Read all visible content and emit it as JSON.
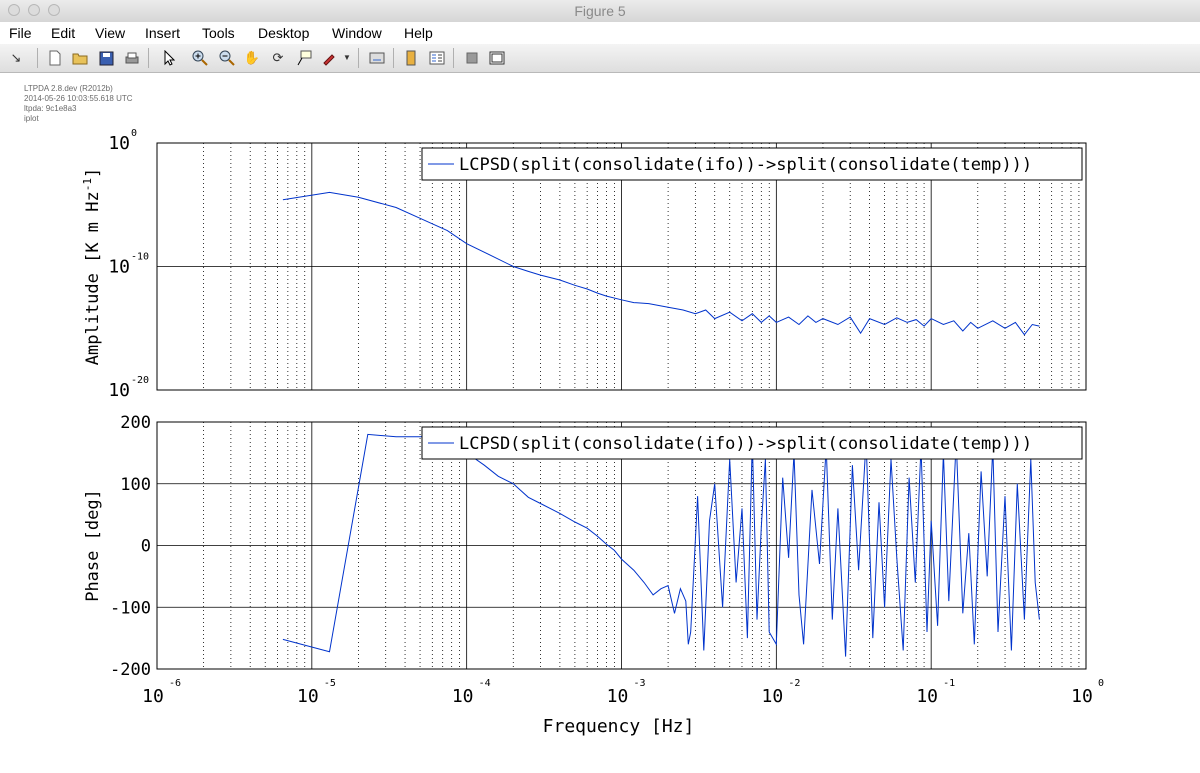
{
  "window": {
    "title": "Figure 5"
  },
  "menu": [
    "File",
    "Edit",
    "View",
    "Insert",
    "Tools",
    "Desktop",
    "Window",
    "Help"
  ],
  "toolbar": {
    "icons": [
      "dock-arrow-icon",
      "new-figure-icon",
      "open-file-icon",
      "save-icon",
      "print-icon",
      "select-arrow-icon",
      "zoom-in-icon",
      "zoom-out-icon",
      "pan-hand-icon",
      "rotate-3d-icon",
      "data-cursor-icon",
      "brush-icon",
      "brush-dropdown-icon",
      "link-plot-icon",
      "colorbar-icon",
      "legend-icon",
      "hide-plot-tools-icon",
      "show-plot-tools-icon"
    ]
  },
  "meta": {
    "line1": "LTPDA 2.8.dev (R2012b)",
    "line2": "2014-05-26 10:03:55.618 UTC",
    "line3": "ltpda: 9c1e8a3",
    "line4": "iplot"
  },
  "colors": {
    "series": "#0033cc"
  },
  "chart_data": [
    {
      "type": "line",
      "xscale": "log",
      "yscale": "log",
      "xlim": [
        1e-06,
        1
      ],
      "ylim": [
        1e-20,
        1
      ],
      "ylabel_main": "Amplitude   [K m Hz",
      "ylabel_sup": "-1",
      "ylabel_end": "]",
      "yticks": [
        {
          "base": "10",
          "exp": "-20"
        },
        {
          "base": "10",
          "exp": "-10"
        },
        {
          "base": "10",
          "exp": "0"
        }
      ],
      "grid": true,
      "legend_position": "top-right",
      "series": [
        {
          "name": "LCPSD(split(consolidate(ifo))->split(consolidate(temp)))",
          "x": [
            6.5e-06,
            1.3e-05,
            2e-05,
            3.5e-05,
            5e-05,
            7.5e-05,
            0.0001,
            0.00015,
            0.0002,
            0.00025,
            0.0003,
            0.0004,
            0.0005,
            0.0006,
            0.0007,
            0.0008,
            0.001,
            0.0012,
            0.0015,
            0.002,
            0.0025,
            0.003,
            0.0035,
            0.004,
            0.005,
            0.006,
            0.007,
            0.008,
            0.009,
            0.01,
            0.012,
            0.014,
            0.016,
            0.018,
            0.02,
            0.025,
            0.03,
            0.035,
            0.04,
            0.05,
            0.06,
            0.07,
            0.08,
            0.09,
            0.1,
            0.12,
            0.14,
            0.16,
            0.18,
            0.2,
            0.25,
            0.3,
            0.35,
            0.4,
            0.45,
            0.5
          ],
          "y": [
            2.5e-05,
            0.0001,
            4e-05,
            6e-06,
            8e-07,
            8e-08,
            7e-09,
            6e-10,
            1e-10,
            4e-11,
            2e-11,
            8e-12,
            3e-12,
            1.5e-12,
            7e-13,
            4e-13,
            2e-13,
            1.2e-13,
            1e-13,
            5e-14,
            3e-14,
            1.5e-14,
            3e-14,
            6e-15,
            2e-14,
            4e-15,
            1.5e-14,
            3e-15,
            1e-14,
            3e-15,
            8e-15,
            2e-15,
            1e-14,
            3e-15,
            6e-15,
            2e-15,
            8e-15,
            4e-16,
            6e-15,
            2e-15,
            7e-15,
            3e-15,
            5e-15,
            1.5e-15,
            6e-15,
            2e-15,
            4e-15,
            6e-16,
            3e-15,
            1e-15,
            4e-15,
            1e-15,
            3e-15,
            3e-16,
            2e-15,
            1.5e-15
          ]
        }
      ]
    },
    {
      "type": "line",
      "xscale": "log",
      "xlim": [
        1e-06,
        1
      ],
      "ylim": [
        -200,
        200
      ],
      "ylabel": "Phase   [deg]",
      "xlabel": "Frequency   [Hz]",
      "xticks": [
        {
          "base": "10",
          "exp": "-6"
        },
        {
          "base": "10",
          "exp": "-5"
        },
        {
          "base": "10",
          "exp": "-4"
        },
        {
          "base": "10",
          "exp": "-3"
        },
        {
          "base": "10",
          "exp": "-2"
        },
        {
          "base": "10",
          "exp": "-1"
        },
        {
          "base": "10",
          "exp": "0"
        }
      ],
      "yticks": [
        "-200",
        "-100",
        "0",
        "100",
        "200"
      ],
      "grid": true,
      "legend_position": "top-right",
      "series": [
        {
          "name": "LCPSD(split(consolidate(ifo))->split(consolidate(temp)))",
          "x": [
            6.5e-06,
            1.3e-05,
            2.3e-05,
            3.5e-05,
            5e-05,
            7e-05,
            0.0001,
            0.00013,
            0.00016,
            0.0002,
            0.00025,
            0.0003,
            0.0004,
            0.0005,
            0.0006,
            0.0007,
            0.0008,
            0.0009,
            0.001,
            0.0012,
            0.0014,
            0.0016,
            0.0018,
            0.002,
            0.0022,
            0.0024,
            0.0026,
            0.0027,
            0.0028,
            0.0031,
            0.0034,
            0.0037,
            0.004,
            0.0045,
            0.005,
            0.0055,
            0.006,
            0.0065,
            0.007,
            0.0075,
            0.008,
            0.0085,
            0.009,
            0.01,
            0.011,
            0.012,
            0.013,
            0.014,
            0.015,
            0.017,
            0.019,
            0.021,
            0.023,
            0.025,
            0.028,
            0.031,
            0.034,
            0.038,
            0.042,
            0.046,
            0.05,
            0.055,
            0.06,
            0.066,
            0.072,
            0.079,
            0.086,
            0.094,
            0.1,
            0.11,
            0.12,
            0.13,
            0.145,
            0.16,
            0.175,
            0.19,
            0.21,
            0.23,
            0.25,
            0.27,
            0.3,
            0.33,
            0.36,
            0.4,
            0.44,
            0.47,
            0.5
          ],
          "y": [
            -152,
            -172,
            180,
            176,
            176,
            178,
            150,
            130,
            112,
            100,
            78,
            68,
            52,
            38,
            28,
            15,
            2,
            -8,
            -22,
            -40,
            -60,
            -80,
            -70,
            -65,
            -110,
            -70,
            -90,
            -160,
            -140,
            80,
            -170,
            40,
            100,
            -100,
            140,
            -60,
            60,
            -150,
            170,
            -120,
            30,
            140,
            -140,
            -160,
            110,
            -20,
            150,
            -80,
            -160,
            90,
            -30,
            160,
            -120,
            60,
            -180,
            130,
            -40,
            170,
            -150,
            70,
            -100,
            140,
            -20,
            -170,
            110,
            -60,
            160,
            -140,
            40,
            -130,
            150,
            -90,
            170,
            -110,
            20,
            -160,
            120,
            -50,
            160,
            -140,
            80,
            -170,
            100,
            -120,
            140,
            -60,
            -120
          ]
        }
      ]
    }
  ]
}
